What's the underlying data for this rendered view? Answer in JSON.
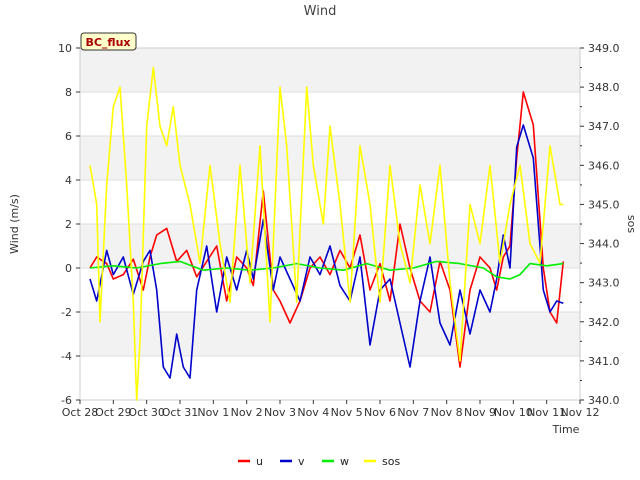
{
  "chart_data": {
    "type": "line",
    "title": "Wind",
    "badge": "BC_flux",
    "xlabel": "Time",
    "ylabel": "Wind (m/s)",
    "y2label": "sos",
    "x_ticks": [
      "Oct 28",
      "Oct 29",
      "Oct 30",
      "Oct 31",
      "Nov 1",
      "Nov 2",
      "Nov 3",
      "Nov 4",
      "Nov 5",
      "Nov 6",
      "Nov 7",
      "Nov 8",
      "Nov 9",
      "Nov 10",
      "Nov 11",
      "Nov 12"
    ],
    "xlim": [
      0,
      15
    ],
    "ylim": [
      -6,
      10
    ],
    "y_ticks": [
      -6,
      -4,
      -2,
      0,
      2,
      4,
      6,
      8,
      10
    ],
    "y2lim": [
      340.0,
      349.0
    ],
    "y2_ticks": [
      "340.0",
      "341.0",
      "342.0",
      "343.0",
      "344.0",
      "345.0",
      "346.0",
      "347.0",
      "348.0",
      "349.0"
    ],
    "legend_position": "bottom-center",
    "series": [
      {
        "name": "u",
        "color": "#ff0000",
        "axis": "left",
        "x": [
          0.3,
          0.5,
          0.8,
          1.0,
          1.3,
          1.6,
          1.9,
          2.1,
          2.3,
          2.6,
          2.9,
          3.2,
          3.5,
          3.8,
          4.1,
          4.4,
          4.7,
          5.0,
          5.2,
          5.5,
          5.8,
          6.0,
          6.3,
          6.6,
          6.9,
          7.2,
          7.5,
          7.8,
          8.1,
          8.4,
          8.7,
          9.0,
          9.3,
          9.6,
          9.9,
          10.2,
          10.5,
          10.8,
          11.1,
          11.4,
          11.7,
          12.0,
          12.3,
          12.5,
          12.7,
          12.9,
          13.1,
          13.3,
          13.6,
          13.9,
          14.1,
          14.3,
          14.5
        ],
        "y": [
          0.0,
          0.5,
          0.2,
          -0.5,
          -0.3,
          0.4,
          -1.0,
          0.5,
          1.5,
          1.8,
          0.3,
          0.8,
          -0.4,
          0.3,
          1.0,
          -1.5,
          0.5,
          0.0,
          -0.8,
          3.5,
          -1.0,
          -1.5,
          -2.5,
          -1.5,
          0.0,
          0.5,
          -0.3,
          0.8,
          0.0,
          1.5,
          -1.0,
          0.2,
          -1.5,
          2.0,
          0.0,
          -1.5,
          -2.0,
          0.3,
          -1.0,
          -4.5,
          -1.0,
          0.5,
          0.0,
          -1.0,
          0.5,
          1.0,
          5.0,
          8.0,
          6.5,
          0.0,
          -2.0,
          -2.5,
          0.3
        ]
      },
      {
        "name": "v",
        "color": "#0000cc",
        "axis": "left",
        "x": [
          0.3,
          0.5,
          0.8,
          1.0,
          1.3,
          1.6,
          1.9,
          2.1,
          2.3,
          2.5,
          2.7,
          2.9,
          3.1,
          3.3,
          3.5,
          3.8,
          4.1,
          4.4,
          4.7,
          5.0,
          5.2,
          5.5,
          5.8,
          6.0,
          6.3,
          6.6,
          6.9,
          7.2,
          7.5,
          7.8,
          8.1,
          8.4,
          8.7,
          9.0,
          9.3,
          9.6,
          9.9,
          10.2,
          10.5,
          10.8,
          11.1,
          11.4,
          11.7,
          12.0,
          12.3,
          12.5,
          12.7,
          12.9,
          13.1,
          13.3,
          13.6,
          13.9,
          14.1,
          14.3,
          14.5
        ],
        "y": [
          -0.5,
          -1.5,
          0.8,
          -0.3,
          0.5,
          -1.2,
          0.3,
          0.8,
          -1.0,
          -4.5,
          -5.0,
          -3.0,
          -4.5,
          -5.0,
          -1.0,
          1.0,
          -2.0,
          0.5,
          -1.0,
          0.8,
          -0.5,
          2.2,
          -1.0,
          0.5,
          -0.5,
          -1.5,
          0.5,
          -0.3,
          1.0,
          -0.8,
          -1.5,
          0.5,
          -3.5,
          -1.0,
          -0.5,
          -2.5,
          -4.5,
          -1.5,
          0.5,
          -2.5,
          -3.5,
          -1.0,
          -3.0,
          -1.0,
          -2.0,
          -0.5,
          1.5,
          0.0,
          5.5,
          6.5,
          5.0,
          -1.0,
          -2.0,
          -1.5,
          -1.6
        ]
      },
      {
        "name": "w",
        "color": "#00ee00",
        "axis": "left",
        "x": [
          0.3,
          1.0,
          1.7,
          2.4,
          3.0,
          3.7,
          4.4,
          5.1,
          5.8,
          6.5,
          7.2,
          7.9,
          8.6,
          9.3,
          10.0,
          10.7,
          11.4,
          12.1,
          12.5,
          12.9,
          13.2,
          13.5,
          14.0,
          14.5
        ],
        "y": [
          0.0,
          0.1,
          0.0,
          0.2,
          0.3,
          -0.1,
          0.0,
          -0.1,
          0.0,
          0.2,
          0.0,
          -0.1,
          0.2,
          -0.1,
          0.0,
          0.3,
          0.2,
          0.0,
          -0.4,
          -0.5,
          -0.3,
          0.2,
          0.1,
          0.2
        ]
      },
      {
        "name": "sos",
        "color": "#ffff00",
        "axis": "right",
        "x": [
          0.3,
          0.5,
          0.6,
          0.8,
          1.0,
          1.2,
          1.4,
          1.6,
          1.7,
          1.8,
          2.0,
          2.2,
          2.4,
          2.6,
          2.8,
          3.0,
          3.3,
          3.6,
          3.9,
          4.2,
          4.5,
          4.8,
          5.1,
          5.4,
          5.7,
          6.0,
          6.2,
          6.5,
          6.8,
          7.0,
          7.3,
          7.5,
          7.8,
          8.1,
          8.4,
          8.7,
          9.0,
          9.3,
          9.6,
          9.9,
          10.2,
          10.5,
          10.8,
          11.1,
          11.4,
          11.7,
          12.0,
          12.3,
          12.6,
          12.9,
          13.2,
          13.5,
          13.8,
          14.1,
          14.4,
          14.5
        ],
        "y": [
          346.0,
          345.0,
          342.0,
          345.5,
          347.5,
          348.0,
          345.5,
          342.5,
          340.0,
          341.5,
          347.0,
          348.5,
          347.0,
          346.5,
          347.5,
          346.0,
          345.0,
          343.5,
          346.0,
          344.0,
          342.5,
          346.0,
          343.0,
          346.5,
          342.0,
          348.0,
          346.5,
          342.5,
          348.0,
          346.0,
          344.5,
          347.0,
          345.0,
          342.5,
          346.5,
          345.0,
          342.5,
          346.0,
          344.0,
          343.0,
          345.5,
          344.0,
          346.0,
          343.0,
          341.0,
          345.0,
          344.0,
          346.0,
          343.5,
          345.0,
          346.0,
          344.0,
          343.5,
          346.5,
          345.0,
          345.0
        ]
      }
    ]
  }
}
